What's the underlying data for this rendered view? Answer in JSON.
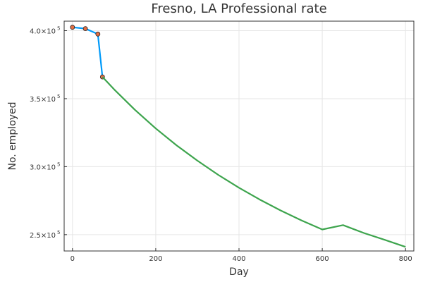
{
  "chart_data": {
    "type": "line",
    "title": "Fresno, LA Professional rate",
    "xlabel": "Day",
    "ylabel": "No. employed",
    "xlim": [
      -20,
      820
    ],
    "ylim": [
      238000,
      407000
    ],
    "x_ticks": [
      0,
      200,
      400,
      600,
      800
    ],
    "y_ticks": [
      {
        "value": 250000,
        "mantissa": "2.5",
        "base": "×10",
        "exp": "5"
      },
      {
        "value": 300000,
        "mantissa": "3.0",
        "base": "×10",
        "exp": "5"
      },
      {
        "value": 350000,
        "mantissa": "3.5",
        "base": "×10",
        "exp": "5"
      },
      {
        "value": 400000,
        "mantissa": "4.0",
        "base": "×10",
        "exp": "5"
      }
    ],
    "grid": true,
    "legend": "none",
    "series": [
      {
        "color": "#009af9",
        "markers": true,
        "marker_color": "#e26f46",
        "x": [
          0,
          31,
          61,
          72
        ],
        "y": [
          402500,
          401500,
          397500,
          366000
        ]
      },
      {
        "color": "#3da44d",
        "markers": false,
        "x": [
          72,
          100,
          150,
          200,
          250,
          300,
          350,
          400,
          450,
          500,
          550,
          600,
          650,
          700,
          750,
          800
        ],
        "y": [
          366000,
          356800,
          341800,
          328100,
          315700,
          304400,
          294000,
          284500,
          275800,
          267800,
          260500,
          253800,
          257000,
          251200,
          246200,
          241000
        ]
      }
    ]
  }
}
